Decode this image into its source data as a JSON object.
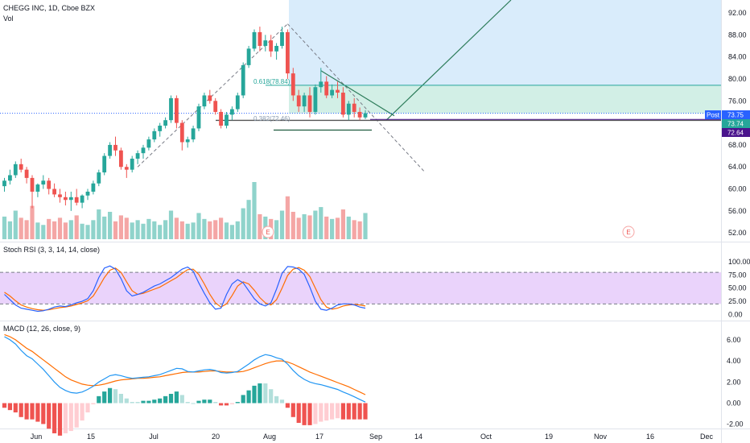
{
  "header": {
    "title": "CHEGG INC, 1D, Cboe BZX",
    "vol_label": "Vol"
  },
  "stoch_label": "Stoch RSI (3, 3, 14, 14, close)",
  "macd_label": "MACD (12, 26, close, 9)",
  "price_ticks": [
    "92.00",
    "88.00",
    "84.00",
    "80.00",
    "76.00",
    "72.00",
    "68.00",
    "64.00",
    "60.00",
    "56.00",
    "52.00"
  ],
  "stoch_ticks": [
    "100.00",
    "75.00",
    "50.00",
    "25.00",
    "0.00"
  ],
  "macd_ticks": [
    "6.00",
    "4.00",
    "2.00",
    "0.00",
    "-2.00"
  ],
  "x_ticks": [
    "Jun",
    "15",
    "Jul",
    "20",
    "Aug",
    "17",
    "Sep",
    "14",
    "Oct",
    "19",
    "Nov",
    "16",
    "Dec"
  ],
  "badges": {
    "post_label": "Post",
    "post_value": "73.75",
    "last_value": "73.74",
    "level_value": "72.64"
  },
  "fib": {
    "f618": "0.618(78.84)",
    "f382": "0.382(72.46)"
  },
  "earnings_marker": "E",
  "colors": {
    "up": "#26a69a",
    "down": "#ef5350",
    "vol_up": "#8fd3cb",
    "vol_down": "#f4a6a5",
    "blue_zone": "#d9ecfb",
    "green_zone": "#d2efe6",
    "stoch_fill": "#ead3fb",
    "k_line": "#2962ff",
    "d_line": "#ff6d00",
    "macd_line": "#2196f3",
    "signal_line": "#ff6d00"
  },
  "chart_data": [
    {
      "type": "candlestick",
      "title": "CHEGG INC, 1D, Cboe BZX",
      "ylim": [
        51,
        93
      ],
      "candles": [
        [
          60.5,
          62.0,
          59.5,
          61.5
        ],
        [
          61.5,
          63.5,
          60.8,
          62.5
        ],
        [
          62.5,
          65.0,
          62.0,
          64.5
        ],
        [
          64.5,
          65.5,
          63.0,
          63.5
        ],
        [
          63.5,
          64.0,
          61.0,
          62.0
        ],
        [
          62.0,
          62.5,
          56.5,
          59.5
        ],
        [
          59.5,
          61.0,
          58.5,
          60.8
        ],
        [
          60.8,
          62.5,
          60.0,
          61.5
        ],
        [
          61.5,
          62.0,
          59.0,
          60.0
        ],
        [
          60.0,
          61.0,
          58.5,
          59.0
        ],
        [
          59.0,
          60.0,
          57.5,
          58.5
        ],
        [
          58.5,
          59.5,
          57.0,
          58.0
        ],
        [
          58.0,
          59.5,
          56.0,
          58.5
        ],
        [
          58.5,
          60.0,
          57.0,
          57.5
        ],
        [
          57.5,
          59.0,
          56.5,
          58.8
        ],
        [
          58.8,
          60.0,
          58.0,
          59.5
        ],
        [
          59.5,
          61.5,
          59.0,
          61.0
        ],
        [
          61.0,
          63.5,
          60.5,
          63.0
        ],
        [
          63.0,
          66.5,
          62.5,
          66.0
        ],
        [
          66.0,
          68.5,
          65.5,
          68.0
        ],
        [
          68.0,
          69.5,
          66.0,
          67.0
        ],
        [
          67.0,
          67.5,
          63.5,
          64.0
        ],
        [
          64.0,
          64.5,
          62.0,
          63.5
        ],
        [
          63.5,
          66.0,
          63.0,
          65.5
        ],
        [
          65.5,
          67.0,
          64.5,
          66.5
        ],
        [
          66.5,
          68.0,
          65.5,
          67.5
        ],
        [
          67.5,
          69.5,
          67.0,
          69.0
        ],
        [
          69.0,
          71.0,
          68.5,
          70.5
        ],
        [
          70.5,
          72.0,
          69.5,
          71.5
        ],
        [
          71.5,
          73.0,
          71.0,
          72.5
        ],
        [
          72.5,
          77.0,
          72.0,
          76.5
        ],
        [
          76.5,
          77.0,
          71.0,
          72.0
        ],
        [
          72.0,
          72.5,
          67.0,
          68.5
        ],
        [
          68.5,
          69.5,
          67.5,
          69.0
        ],
        [
          69.0,
          71.5,
          68.5,
          71.0
        ],
        [
          71.0,
          75.5,
          70.5,
          75.0
        ],
        [
          75.0,
          77.5,
          74.5,
          77.0
        ],
        [
          77.0,
          78.0,
          75.5,
          76.0
        ],
        [
          76.0,
          76.5,
          73.5,
          74.0
        ],
        [
          74.0,
          74.5,
          71.0,
          71.5
        ],
        [
          71.5,
          74.0,
          71.0,
          73.5
        ],
        [
          73.5,
          75.0,
          72.5,
          74.5
        ],
        [
          74.5,
          77.5,
          74.0,
          77.0
        ],
        [
          77.0,
          83.0,
          76.5,
          82.5
        ],
        [
          82.5,
          86.0,
          82.0,
          85.5
        ],
        [
          85.5,
          89.0,
          85.0,
          88.5
        ],
        [
          88.5,
          89.5,
          85.0,
          86.0
        ],
        [
          86.0,
          88.0,
          85.0,
          87.0
        ],
        [
          87.0,
          88.0,
          84.0,
          85.0
        ],
        [
          85.0,
          86.5,
          83.5,
          86.0
        ],
        [
          86.0,
          89.5,
          85.5,
          88.5
        ],
        [
          88.5,
          89.0,
          80.0,
          81.0
        ],
        [
          81.0,
          82.0,
          76.0,
          77.0
        ],
        [
          77.0,
          78.0,
          74.0,
          75.0
        ],
        [
          75.0,
          77.5,
          74.0,
          77.0
        ],
        [
          77.0,
          78.5,
          73.0,
          74.0
        ],
        [
          74.0,
          79.0,
          73.5,
          78.5
        ],
        [
          78.5,
          82.0,
          77.5,
          79.5
        ],
        [
          79.5,
          80.5,
          76.5,
          77.0
        ],
        [
          77.0,
          79.0,
          76.5,
          78.0
        ],
        [
          78.0,
          79.5,
          76.5,
          77.5
        ],
        [
          77.5,
          78.5,
          73.0,
          73.5
        ],
        [
          73.5,
          76.0,
          72.5,
          75.5
        ],
        [
          75.5,
          76.5,
          73.0,
          74.0
        ],
        [
          74.0,
          74.8,
          72.5,
          73.0
        ],
        [
          73.0,
          74.3,
          72.7,
          73.75
        ]
      ],
      "volume": [
        1.9,
        1.5,
        2.4,
        1.8,
        1.6,
        2.8,
        1.4,
        1.2,
        1.7,
        1.5,
        1.8,
        1.4,
        1.6,
        2.0,
        1.3,
        1.2,
        1.6,
        2.5,
        1.9,
        2.3,
        1.5,
        2.0,
        1.8,
        1.4,
        1.6,
        1.3,
        1.7,
        1.5,
        1.2,
        1.6,
        2.4,
        1.8,
        1.5,
        1.3,
        1.4,
        2.2,
        1.7,
        1.5,
        1.6,
        1.8,
        1.4,
        1.2,
        1.5,
        2.6,
        3.3,
        4.8,
        2.1,
        1.9,
        1.7,
        1.6,
        2.4,
        3.6,
        2.3,
        1.8,
        2.1,
        2.0,
        2.4,
        2.7,
        1.9,
        1.7,
        1.8,
        2.5,
        1.9,
        1.6,
        1.5,
        2.2
      ],
      "fib_levels": [
        {
          "label": "0.618",
          "value": 78.84
        },
        {
          "label": "0.382",
          "value": 72.46
        }
      ],
      "price_level_lines": [
        73.75,
        72.64
      ]
    },
    {
      "type": "line",
      "title": "Stoch RSI (3, 3, 14, 14, close)",
      "ylim": [
        0,
        100
      ],
      "bands": [
        80,
        20
      ],
      "series": [
        {
          "name": "K",
          "values": [
            38,
            28,
            18,
            12,
            10,
            8,
            6,
            7,
            10,
            14,
            16,
            15,
            18,
            22,
            25,
            30,
            45,
            70,
            88,
            92,
            86,
            68,
            45,
            35,
            38,
            42,
            48,
            54,
            58,
            64,
            70,
            78,
            86,
            90,
            82,
            60,
            40,
            22,
            10,
            12,
            38,
            58,
            66,
            60,
            45,
            30,
            20,
            16,
            22,
            48,
            78,
            91,
            90,
            86,
            76,
            52,
            25,
            10,
            8,
            12,
            18,
            20,
            20,
            18,
            14,
            12
          ]
        },
        {
          "name": "D",
          "values": [
            42,
            35,
            26,
            18,
            14,
            11,
            9,
            8,
            9,
            11,
            13,
            14,
            16,
            19,
            22,
            26,
            35,
            52,
            70,
            84,
            88,
            80,
            62,
            45,
            38,
            40,
            44,
            48,
            52,
            58,
            64,
            70,
            78,
            85,
            86,
            76,
            58,
            38,
            22,
            14,
            20,
            36,
            54,
            62,
            58,
            46,
            32,
            22,
            18,
            28,
            50,
            74,
            86,
            89,
            84,
            72,
            50,
            28,
            14,
            10,
            12,
            16,
            18,
            19,
            18,
            16
          ]
        }
      ]
    },
    {
      "type": "line",
      "title": "MACD (12, 26, close, 9)",
      "ylim": [
        -2.4,
        6.6
      ],
      "series": [
        {
          "name": "MACD",
          "values": [
            6.3,
            6.0,
            5.6,
            5.0,
            4.5,
            4.2,
            3.7,
            3.2,
            2.6,
            2.0,
            1.5,
            1.2,
            1.0,
            0.95,
            1.05,
            1.3,
            1.6,
            2.0,
            2.3,
            2.6,
            2.7,
            2.6,
            2.45,
            2.35,
            2.4,
            2.45,
            2.5,
            2.6,
            2.7,
            2.9,
            3.1,
            3.3,
            3.25,
            3.0,
            2.95,
            3.05,
            3.15,
            3.2,
            3.1,
            2.9,
            2.85,
            2.9,
            3.0,
            3.35,
            3.7,
            4.1,
            4.4,
            4.6,
            4.5,
            4.3,
            4.15,
            3.7,
            3.1,
            2.6,
            2.25,
            2.0,
            1.85,
            1.75,
            1.6,
            1.45,
            1.3,
            1.05,
            0.85,
            0.6,
            0.35,
            0.1
          ]
        },
        {
          "name": "Signal",
          "values": [
            6.5,
            6.3,
            6.0,
            5.6,
            5.2,
            4.9,
            4.5,
            4.1,
            3.7,
            3.3,
            2.9,
            2.5,
            2.2,
            2.0,
            1.8,
            1.7,
            1.65,
            1.7,
            1.8,
            1.95,
            2.1,
            2.2,
            2.25,
            2.3,
            2.35,
            2.35,
            2.4,
            2.45,
            2.5,
            2.6,
            2.7,
            2.8,
            2.9,
            2.95,
            2.95,
            2.95,
            3.0,
            3.05,
            3.05,
            3.0,
            2.95,
            2.95,
            2.95,
            3.0,
            3.15,
            3.35,
            3.55,
            3.75,
            3.9,
            4.0,
            4.0,
            3.9,
            3.7,
            3.45,
            3.2,
            2.95,
            2.75,
            2.55,
            2.35,
            2.15,
            1.95,
            1.75,
            1.55,
            1.3,
            1.05,
            0.8
          ]
        }
      ]
    }
  ]
}
